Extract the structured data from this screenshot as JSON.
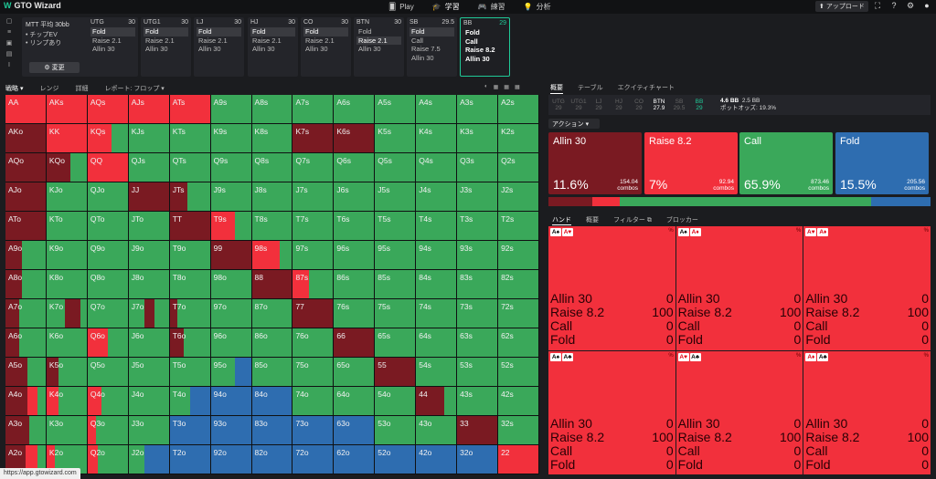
{
  "app": {
    "title": "GTO Wizard",
    "logo_mark": "W"
  },
  "nav": [
    {
      "label": "Play",
      "icon": "cards-icon"
    },
    {
      "label": "学習",
      "icon": "graduation-cap-icon",
      "active": true
    },
    {
      "label": "練習",
      "icon": "gamepad-icon"
    },
    {
      "label": "分析",
      "icon": "lightbulb-icon"
    }
  ],
  "topbar": {
    "upload_label": "アップロード"
  },
  "config": {
    "title": "MTT 平均 30bb",
    "bullets": [
      "チップEV",
      "リンプあり"
    ],
    "change_label": "変更"
  },
  "positions": [
    {
      "name": "UTG",
      "stack": "30",
      "actions": [
        "Fold",
        "Raise 2.1",
        "Allin 30"
      ],
      "selected": "Fold"
    },
    {
      "name": "UTG1",
      "stack": "30",
      "actions": [
        "Fold",
        "Raise 2.1",
        "Allin 30"
      ],
      "selected": "Fold"
    },
    {
      "name": "LJ",
      "stack": "30",
      "actions": [
        "Fold",
        "Raise 2.1",
        "Allin 30"
      ],
      "selected": "Fold"
    },
    {
      "name": "HJ",
      "stack": "30",
      "actions": [
        "Fold",
        "Raise 2.1",
        "Allin 30"
      ],
      "selected": "Fold"
    },
    {
      "name": "CO",
      "stack": "30",
      "actions": [
        "Fold",
        "Raise 2.1",
        "Allin 30"
      ],
      "selected": "Fold"
    },
    {
      "name": "BTN",
      "stack": "30",
      "actions": [
        "Fold",
        "Raise 2.1",
        "Allin 30"
      ],
      "selected": "Raise 2.1"
    },
    {
      "name": "SB",
      "stack": "29.5",
      "actions": [
        "Fold",
        "Call",
        "Raise 7.5",
        "Allin 30"
      ],
      "selected": "Fold"
    },
    {
      "name": "BB",
      "stack": "29",
      "actions": [
        "Fold",
        "Call",
        "Raise 8.2",
        "Allin 30"
      ],
      "current": true
    }
  ],
  "left_toolbar": {
    "strategy": "戦略",
    "range": "レンジ",
    "detail": "詳細",
    "report": "レポート: フロップ"
  },
  "grid": {
    "rows": [
      [
        "AA",
        "AKs",
        "AQs",
        "AJs",
        "ATs",
        "A9s",
        "A8s",
        "A7s",
        "A6s",
        "A5s",
        "A4s",
        "A3s",
        "A2s"
      ],
      [
        "AKo",
        "KK",
        "KQs",
        "KJs",
        "KTs",
        "K9s",
        "K8s",
        "K7s",
        "K6s",
        "K5s",
        "K4s",
        "K3s",
        "K2s"
      ],
      [
        "AQo",
        "KQo",
        "QQ",
        "QJs",
        "QTs",
        "Q9s",
        "Q8s",
        "Q7s",
        "Q6s",
        "Q5s",
        "Q4s",
        "Q3s",
        "Q2s"
      ],
      [
        "AJo",
        "KJo",
        "QJo",
        "JJ",
        "JTs",
        "J9s",
        "J8s",
        "J7s",
        "J6s",
        "J5s",
        "J4s",
        "J3s",
        "J2s"
      ],
      [
        "ATo",
        "KTo",
        "QTo",
        "JTo",
        "TT",
        "T9s",
        "T8s",
        "T7s",
        "T6s",
        "T5s",
        "T4s",
        "T3s",
        "T2s"
      ],
      [
        "A9o",
        "K9o",
        "Q9o",
        "J9o",
        "T9o",
        "99",
        "98s",
        "97s",
        "96s",
        "95s",
        "94s",
        "93s",
        "92s"
      ],
      [
        "A8o",
        "K8o",
        "Q8o",
        "J8o",
        "T8o",
        "98o",
        "88",
        "87s",
        "86s",
        "85s",
        "84s",
        "83s",
        "82s"
      ],
      [
        "A7o",
        "K7o",
        "Q7o",
        "J7o",
        "T7o",
        "97o",
        "87o",
        "77",
        "76s",
        "75s",
        "74s",
        "73s",
        "72s"
      ],
      [
        "A6o",
        "K6o",
        "Q6o",
        "J6o",
        "T6o",
        "96o",
        "86o",
        "76o",
        "66",
        "65s",
        "64s",
        "63s",
        "62s"
      ],
      [
        "A5o",
        "K5o",
        "Q5o",
        "J5o",
        "T5o",
        "95o",
        "85o",
        "75o",
        "65o",
        "55",
        "54s",
        "53s",
        "52s"
      ],
      [
        "A4o",
        "K4o",
        "Q4o",
        "J4o",
        "T4o",
        "94o",
        "84o",
        "74o",
        "64o",
        "54o",
        "44",
        "43s",
        "42s"
      ],
      [
        "A3o",
        "K3o",
        "Q3o",
        "J3o",
        "T3o",
        "93o",
        "83o",
        "73o",
        "63o",
        "53o",
        "43o",
        "33",
        "32s"
      ],
      [
        "A2o",
        "K2o",
        "Q2o",
        "J2o",
        "T2o",
        "92o",
        "82o",
        "72o",
        "62o",
        "52o",
        "42o",
        "32o",
        "22"
      ]
    ]
  },
  "colors": {
    "allin": "#7a1a22",
    "raise": "#f2303c",
    "call": "#3aa85a",
    "fold": "#2e6db0"
  },
  "right_tabs": {
    "summary": "概要",
    "table": "テーブル",
    "equity": "エクイティチャート"
  },
  "stacks": [
    {
      "pos": "UTG",
      "val": "29"
    },
    {
      "pos": "UTG1",
      "val": "29"
    },
    {
      "pos": "LJ",
      "val": "29"
    },
    {
      "pos": "HJ",
      "val": "29"
    },
    {
      "pos": "CO",
      "val": "29"
    },
    {
      "pos": "BTN",
      "val": "27.9",
      "bright": true
    },
    {
      "pos": "SB",
      "val": "29.5"
    },
    {
      "pos": "BB",
      "val": "29",
      "green": true
    }
  ],
  "pot": {
    "main": "4.6 BB",
    "side": "2.5 BB",
    "odds_label": "ポットオッズ:",
    "odds": "19.3%"
  },
  "action_label": "アクション",
  "actions": [
    {
      "name": "Allin 30",
      "pct": "11.6%",
      "combos": "154.04",
      "combos_label": "combos",
      "color": "#7a1a22"
    },
    {
      "name": "Raise 8.2",
      "pct": "7%",
      "combos": "92.94",
      "combos_label": "combos",
      "color": "#f2303c"
    },
    {
      "name": "Call",
      "pct": "65.9%",
      "combos": "873.46",
      "combos_label": "combos",
      "color": "#3aa85a"
    },
    {
      "name": "Fold",
      "pct": "15.5%",
      "combos": "205.56",
      "combos_label": "combos",
      "color": "#2e6db0"
    }
  ],
  "hand_tabs": {
    "hand": "ハンド",
    "summary": "概要",
    "filter": "フィルター",
    "blocker": "ブロッカー"
  },
  "hands": [
    {
      "c1": "A♠",
      "c1r": false,
      "c2": "A♥",
      "c2r": true
    },
    {
      "c1": "A♠",
      "c1r": false,
      "c2": "A♦",
      "c2r": true
    },
    {
      "c1": "A♥",
      "c1r": true,
      "c2": "A♦",
      "c2r": true
    },
    {
      "c1": "A♠",
      "c1r": false,
      "c2": "A♣",
      "c2r": false
    },
    {
      "c1": "A♥",
      "c1r": true,
      "c2": "A♣",
      "c2r": false
    },
    {
      "c1": "A♦",
      "c1r": true,
      "c2": "A♣",
      "c2r": false
    }
  ],
  "hand_rows": [
    {
      "label": "Allin 30",
      "val": "0"
    },
    {
      "label": "Raise 8.2",
      "val": "100"
    },
    {
      "label": "Call",
      "val": "0"
    },
    {
      "label": "Fold",
      "val": "0"
    }
  ],
  "hand_pct": "%",
  "status_url": "https://app.gtowizard.com"
}
